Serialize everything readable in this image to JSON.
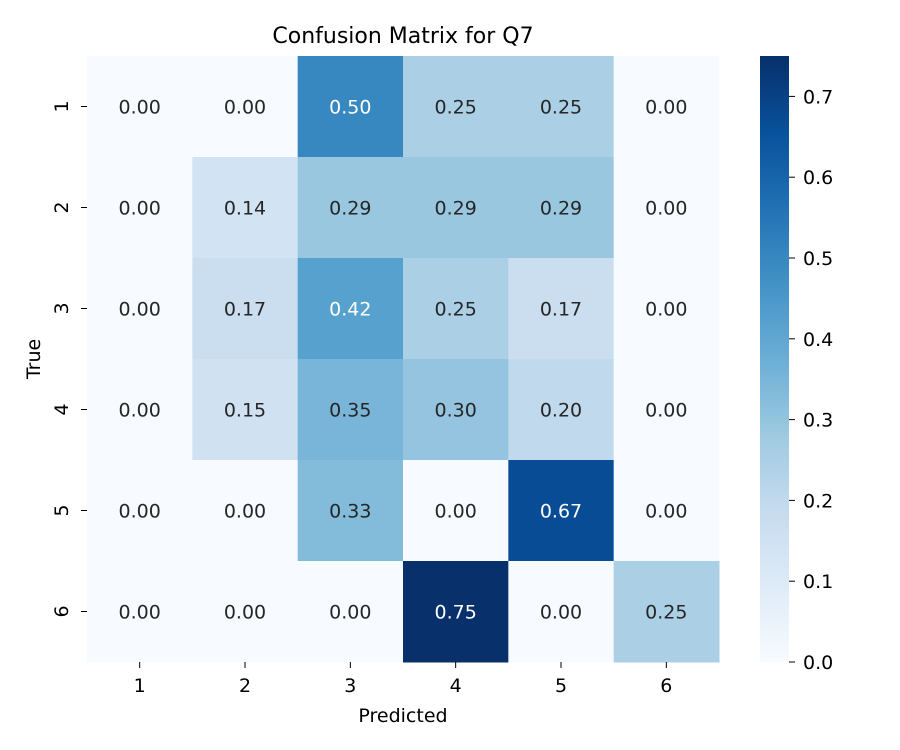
{
  "chart_data": {
    "type": "heatmap",
    "title": "Confusion Matrix for Q7",
    "xlabel": "Predicted",
    "ylabel": "True",
    "x_categories": [
      "1",
      "2",
      "3",
      "4",
      "5",
      "6"
    ],
    "y_categories": [
      "1",
      "2",
      "3",
      "4",
      "5",
      "6"
    ],
    "values": [
      [
        0.0,
        0.0,
        0.5,
        0.25,
        0.25,
        0.0
      ],
      [
        0.0,
        0.14,
        0.29,
        0.29,
        0.29,
        0.0
      ],
      [
        0.0,
        0.17,
        0.42,
        0.25,
        0.17,
        0.0
      ],
      [
        0.0,
        0.15,
        0.35,
        0.3,
        0.2,
        0.0
      ],
      [
        0.0,
        0.0,
        0.33,
        0.0,
        0.67,
        0.0
      ],
      [
        0.0,
        0.0,
        0.0,
        0.75,
        0.0,
        0.25
      ]
    ],
    "value_format": "0.00",
    "colormap": "Blues",
    "colorbar": {
      "range": [
        0,
        0.75
      ],
      "ticks": [
        "0.0",
        "0.1",
        "0.2",
        "0.3",
        "0.4",
        "0.5",
        "0.6",
        "0.7"
      ]
    },
    "legend": "colorbar-right"
  }
}
